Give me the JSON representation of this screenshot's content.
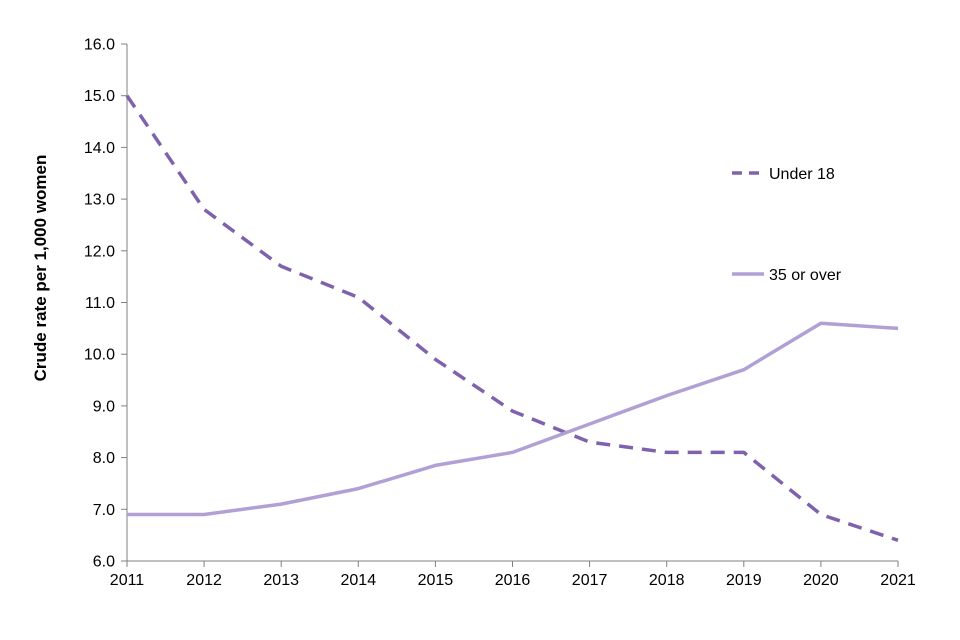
{
  "chart_data": {
    "type": "line",
    "ylabel": "Crude rate per 1,000 women",
    "xlabel": "",
    "x": [
      "2011",
      "2012",
      "2013",
      "2014",
      "2015",
      "2016",
      "2017",
      "2018",
      "2019",
      "2020",
      "2021"
    ],
    "ylim": [
      6.0,
      16.0
    ],
    "yticks": [
      "6.0",
      "7.0",
      "8.0",
      "9.0",
      "10.0",
      "11.0",
      "12.0",
      "13.0",
      "14.0",
      "15.0",
      "16.0"
    ],
    "grid": false,
    "legend_position": "right",
    "series": [
      {
        "name": "Under 18",
        "color": "#7e62ad",
        "style": "dashed",
        "values": [
          15.0,
          12.8,
          11.7,
          11.1,
          9.9,
          8.9,
          8.3,
          8.1,
          8.1,
          6.9,
          6.4
        ]
      },
      {
        "name": "35 or over",
        "color": "#b0a0d6",
        "style": "solid",
        "values": [
          6.9,
          6.9,
          7.1,
          7.4,
          7.85,
          8.1,
          8.65,
          9.2,
          9.7,
          10.6,
          10.5
        ]
      }
    ]
  }
}
